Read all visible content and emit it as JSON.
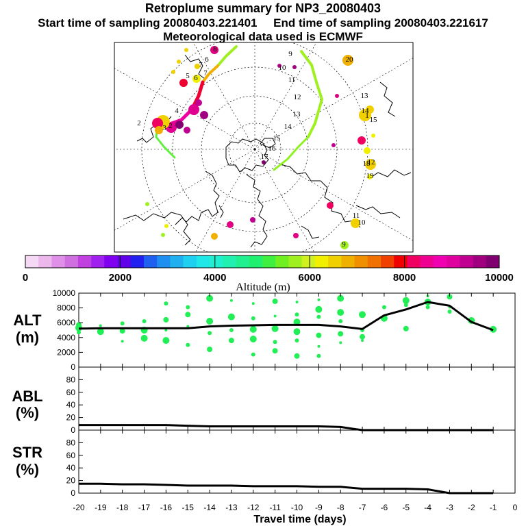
{
  "header": {
    "title": "Retroplume summary for NP3_20080403",
    "start_label": "Start time of sampling 20080403.221401",
    "end_label": "End time of sampling 20080403.221617",
    "met_label": "Meteorological data used is ECMWF"
  },
  "colorbar": {
    "label": "Altitude (m)",
    "ticks": [
      "0",
      "2000",
      "4000",
      "6000",
      "8000",
      "10000"
    ],
    "colors": [
      "#f4d8f4",
      "#ecb8ec",
      "#e090e8",
      "#d070e0",
      "#c040e0",
      "#a020f0",
      "#8000f0",
      "#6000e8",
      "#2020f0",
      "#2060f0",
      "#2090f0",
      "#20b0f0",
      "#20d0f0",
      "#20e8e8",
      "#20f0d0",
      "#20f0b0",
      "#20f090",
      "#20f070",
      "#40f040",
      "#70f020",
      "#a0f020",
      "#d0f020",
      "#f0f000",
      "#f0d000",
      "#f0b000",
      "#f09000",
      "#f07000",
      "#f04000",
      "#f00000",
      "#f00060",
      "#f00090",
      "#f000b0",
      "#e000a0",
      "#c00090",
      "#a00080",
      "#800070"
    ]
  },
  "map": {
    "day_labels": [
      "1",
      "2",
      "3",
      "4",
      "5",
      "6",
      "7",
      "8",
      "9",
      "10",
      "11",
      "12",
      "13",
      "14",
      "15",
      "16",
      "17",
      "18",
      "19",
      "20",
      "15",
      "14",
      "13",
      "12",
      "11",
      "10",
      "9",
      "6",
      "7",
      "2"
    ]
  },
  "chart_data": [
    {
      "type": "line",
      "title": "ALT",
      "ylabel": "ALT (m)",
      "ylim": [
        0,
        10000
      ],
      "yticks": [
        "0",
        "2000",
        "4000",
        "6000",
        "8000",
        "10000"
      ],
      "x": [
        -20,
        -19,
        -18,
        -17,
        -16,
        -15,
        -14,
        -13,
        -12,
        -11,
        -10,
        -9,
        -8,
        -7,
        -6,
        -5,
        -4,
        -3,
        -2,
        -1
      ],
      "series": [
        {
          "name": "median altitude",
          "values": [
            5200,
            5250,
            5250,
            5250,
            5250,
            5250,
            5500,
            5600,
            5650,
            5700,
            5700,
            5700,
            5500,
            5150,
            7000,
            7800,
            8800,
            8300,
            6100,
            5000
          ]
        }
      ],
      "scatter": [
        [
          -20,
          5300
        ],
        [
          -20,
          4700
        ],
        [
          -20,
          5700
        ],
        [
          -19,
          5600
        ],
        [
          -19,
          4800
        ],
        [
          -18,
          5900
        ],
        [
          -18,
          4900
        ],
        [
          -18,
          3500
        ],
        [
          -17,
          6200
        ],
        [
          -17,
          5000
        ],
        [
          -17,
          3900
        ],
        [
          -16,
          8600
        ],
        [
          -16,
          6400
        ],
        [
          -16,
          5000
        ],
        [
          -16,
          3600
        ],
        [
          -15,
          8100
        ],
        [
          -15,
          7100
        ],
        [
          -15,
          5500
        ],
        [
          -15,
          3000
        ],
        [
          -14,
          9300
        ],
        [
          -14,
          6200
        ],
        [
          -14,
          4600
        ],
        [
          -14,
          2400
        ],
        [
          -13,
          9000
        ],
        [
          -13,
          6800
        ],
        [
          -13,
          5000
        ],
        [
          -13,
          3600
        ],
        [
          -12,
          8600
        ],
        [
          -12,
          6600
        ],
        [
          -12,
          5100
        ],
        [
          -12,
          3800
        ],
        [
          -12,
          1700
        ],
        [
          -11,
          8900
        ],
        [
          -11,
          6900
        ],
        [
          -11,
          5200
        ],
        [
          -11,
          3400
        ],
        [
          -11,
          2200
        ],
        [
          -10,
          8800
        ],
        [
          -10,
          7100
        ],
        [
          -10,
          6100
        ],
        [
          -10,
          4800
        ],
        [
          -10,
          3600
        ],
        [
          -10,
          1500
        ],
        [
          -9,
          9100
        ],
        [
          -9,
          7800
        ],
        [
          -9,
          6800
        ],
        [
          -9,
          4300
        ],
        [
          -9,
          2800
        ],
        [
          -9,
          1500
        ],
        [
          -8,
          9300
        ],
        [
          -8,
          7400
        ],
        [
          -8,
          6200
        ],
        [
          -8,
          4500
        ],
        [
          -8,
          3300
        ],
        [
          -7,
          7100
        ],
        [
          -7,
          5000
        ],
        [
          -7,
          4100
        ],
        [
          -7,
          3600
        ],
        [
          -6,
          8100
        ],
        [
          -6,
          6600
        ],
        [
          -5,
          9000
        ],
        [
          -5,
          8400
        ],
        [
          -5,
          5200
        ],
        [
          -4,
          9600
        ],
        [
          -4,
          8800
        ],
        [
          -4,
          8100
        ],
        [
          -3,
          9500
        ],
        [
          -3,
          8100
        ],
        [
          -3,
          7500
        ],
        [
          -2,
          6300
        ],
        [
          -1,
          5100
        ]
      ]
    },
    {
      "type": "line",
      "title": "ABL",
      "ylabel": "ABL (%)",
      "ylim": [
        0,
        100
      ],
      "yticks": [
        "0",
        "20",
        "40",
        "60",
        "80"
      ],
      "x": [
        -20,
        -19,
        -18,
        -17,
        -16,
        -15,
        -14,
        -13,
        -12,
        -11,
        -10,
        -9,
        -8,
        -7,
        -6,
        -5,
        -4,
        -3,
        -2,
        -1
      ],
      "series": [
        {
          "name": "ABL fraction",
          "values": [
            8,
            8,
            8,
            8,
            8,
            7,
            6,
            6,
            6,
            6,
            6,
            6,
            5,
            0,
            0,
            0,
            0,
            0,
            0,
            0
          ]
        }
      ]
    },
    {
      "type": "line",
      "title": "STR",
      "ylabel": "STR (%)",
      "ylim": [
        0,
        100
      ],
      "yticks": [
        "0",
        "20",
        "40",
        "60",
        "80"
      ],
      "x": [
        -20,
        -19,
        -18,
        -17,
        -16,
        -15,
        -14,
        -13,
        -12,
        -11,
        -10,
        -9,
        -8,
        -7,
        -6,
        -5,
        -4,
        -3,
        -2,
        -1
      ],
      "series": [
        {
          "name": "stratospheric fraction",
          "values": [
            15,
            15,
            14,
            14,
            13,
            12,
            12,
            12,
            11,
            11,
            11,
            10,
            10,
            7,
            7,
            7,
            6,
            0,
            0,
            0
          ]
        }
      ]
    }
  ],
  "xaxis": {
    "label": "Travel time (days)",
    "ticks": [
      "-20",
      "-19",
      "-18",
      "-17",
      "-16",
      "-15",
      "-14",
      "-13",
      "-12",
      "-11",
      "-10",
      "-9",
      "-8",
      "-7",
      "-6",
      "-5",
      "-4",
      "-3",
      "-2",
      "-1",
      "0"
    ]
  },
  "panels": {
    "alt_name": "ALT",
    "alt_unit": "(m)",
    "abl_name": "ABL",
    "abl_unit": "(%)",
    "str_name": "STR",
    "str_unit": "(%)"
  },
  "colors": {
    "scatter": "#22ee55",
    "line": "#000000"
  }
}
